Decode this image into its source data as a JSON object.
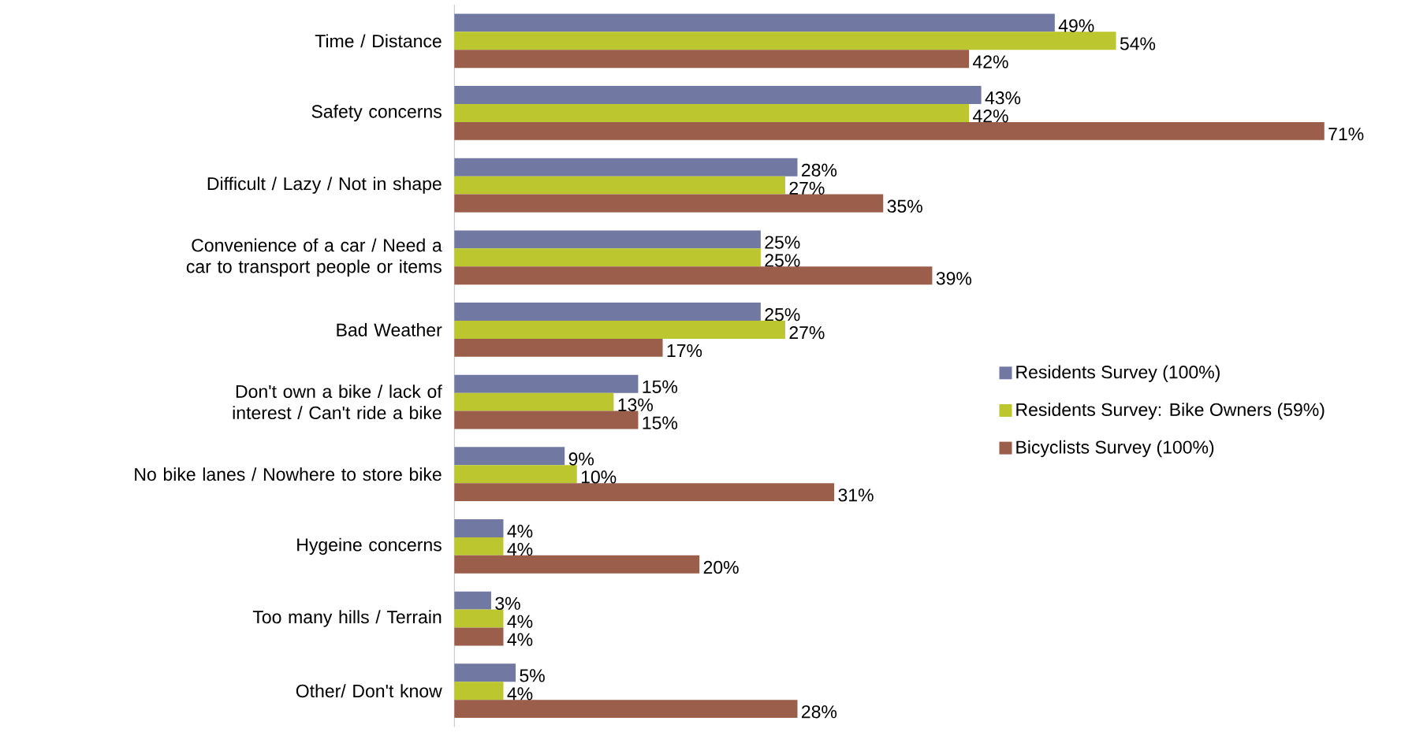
{
  "chart_data": {
    "type": "bar",
    "orientation": "horizontal",
    "legend": "right",
    "categories": [
      "Time  / Distance",
      "Safety concerns",
      "Difficult / Lazy / Not in shape",
      "Convenience of a car / Need a car to transport people or items",
      "Bad Weather",
      "Don't own a bike / lack of interest / Can't ride a bike",
      "No bike lanes / Nowhere to store bike",
      "Hygeine concerns",
      "Too many hills / Terrain",
      "Other/ Don't know"
    ],
    "series": [
      {
        "name": "Residents Survey (100%)",
        "color": "#7179a3",
        "values": [
          49,
          43,
          28,
          25,
          25,
          15,
          9,
          4,
          3,
          5
        ],
        "value_labels": [
          "49%",
          "43%",
          "28%",
          "25%",
          "25%",
          "15%",
          "9%",
          "4%",
          "3%",
          "5%"
        ]
      },
      {
        "name": "Residents Survey: Bike Owners (59%)",
        "color": "#bcc62f",
        "values": [
          54,
          42,
          27,
          25,
          27,
          13,
          10,
          4,
          4,
          4
        ],
        "value_labels": [
          "54%",
          "42%",
          "27%",
          "25%",
          "27%",
          "13%",
          "10%",
          "4%",
          "4%",
          "4%"
        ]
      },
      {
        "name": "Bicyclists Survey (100%)",
        "color": "#9a5e4b",
        "values": [
          42,
          71,
          35,
          39,
          17,
          15,
          31,
          20,
          4,
          28
        ],
        "value_labels": [
          "42%",
          "71%",
          "35%",
          "39%",
          "17%",
          "15%",
          "31%",
          "20%",
          "4%",
          "28%"
        ]
      }
    ]
  }
}
